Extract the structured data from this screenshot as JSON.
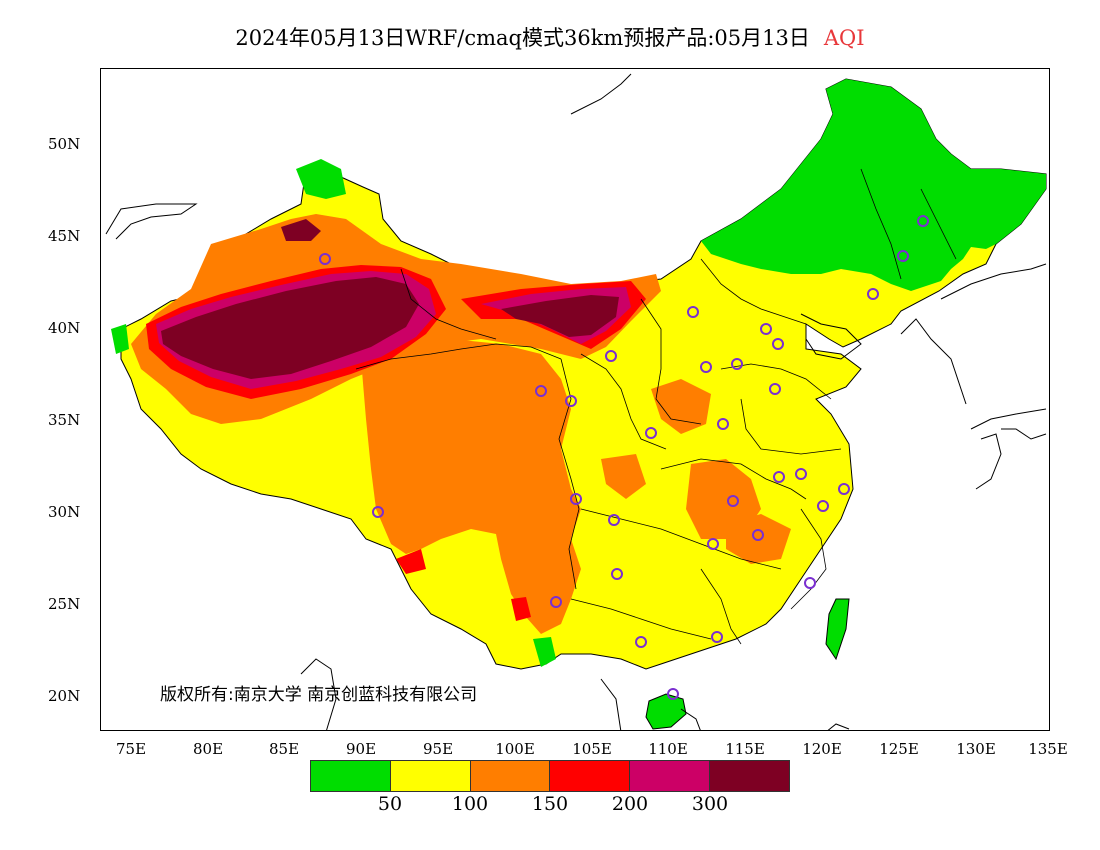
{
  "title": {
    "main": "2024年05月13日WRF/cmaq模式36km预报产品:05月13日",
    "product": "AQI"
  },
  "axes": {
    "lat_labels": [
      "50N",
      "45N",
      "40N",
      "35N",
      "30N",
      "25N",
      "20N"
    ],
    "lon_labels": [
      "75E",
      "80E",
      "85E",
      "90E",
      "95E",
      "100E",
      "105E",
      "110E",
      "115E",
      "120E",
      "125E",
      "130E",
      "135E"
    ]
  },
  "copyright": "版权所有:南京大学  南京创蓝科技有限公司",
  "legend": {
    "colors": [
      "#00dd00",
      "#ffff00",
      "#ff7e00",
      "#ff0000",
      "#cc0066",
      "#7e0023"
    ],
    "labels": [
      "50",
      "100",
      "150",
      "200",
      "300"
    ]
  },
  "colors": {
    "good": "#00dd00",
    "moderate": "#ffff00",
    "unhealthy_sensitive": "#ff7e00",
    "unhealthy": "#ff0000",
    "very_unhealthy": "#cc0066",
    "hazardous": "#7e0023",
    "station_marker": "#7a2fd0"
  }
}
